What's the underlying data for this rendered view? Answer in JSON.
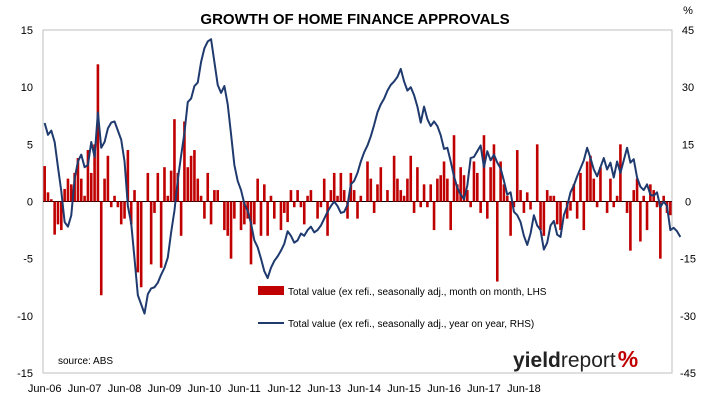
{
  "chart_data": {
    "type": "bar",
    "title": "GROWTH OF HOME FINANCE APPROVALS",
    "right_axis_unit": "%",
    "source": "source: ABS",
    "logo": {
      "part1": "yield",
      "part2": "report",
      "part3": "%"
    },
    "colors": {
      "bars": "#c00000",
      "line": "#1f3a6e"
    },
    "y_left": {
      "min": -15,
      "max": 15,
      "ticks": [
        "15",
        "10",
        "5",
        "0",
        "-5",
        "-10",
        "-15"
      ]
    },
    "y_right": {
      "min": -45,
      "max": 45,
      "ticks": [
        "45",
        "30",
        "15",
        "0",
        "-15",
        "-30",
        "-45"
      ]
    },
    "x_ticks": [
      "Jun-06",
      "Jun-07",
      "Jun-08",
      "Jun-09",
      "Jun-10",
      "Jun-11",
      "Jun-12",
      "Jun-13",
      "Jun-14",
      "Jun-15",
      "Jun-16",
      "Jun-17",
      "Jun-18"
    ],
    "start_month": "Jun-06",
    "grid": false,
    "legend_position": "center-right",
    "series": [
      {
        "name": "Total value (ex refi., seasonally adj., month on month, LHS",
        "type": "bar",
        "axis": "left",
        "values": [
          3.1,
          0.8,
          0.2,
          -2.9,
          -2.0,
          -2.5,
          1.1,
          2.0,
          1.5,
          2.5,
          3.8,
          2.0,
          0.5,
          4.5,
          2.5,
          5.0,
          12.0,
          -8.2,
          2.0,
          4.0,
          -0.5,
          0.5,
          -0.5,
          -2.0,
          -1.5,
          4.5,
          -2.0,
          1.0,
          -6.2,
          -7.5,
          0.0,
          2.5,
          -5.5,
          -1.0,
          2.5,
          -5.8,
          3.0,
          0.5,
          2.7,
          7.2,
          2.5,
          -3.0,
          7.0,
          3.0,
          4.0,
          4.5,
          2.0,
          0.5,
          -1.5,
          2.5,
          -2.0,
          1.0,
          1.0,
          0.0,
          -2.5,
          -3.0,
          -5.0,
          -1.5,
          0.0,
          -2.5,
          -2.0,
          -1.5,
          -5.5,
          -2.0,
          2.0,
          -3.0,
          1.5,
          -3.0,
          0.5,
          -1.5,
          0.0,
          -2.5,
          -1.0,
          -1.8,
          1.0,
          -0.5,
          1.0,
          -0.5,
          -2.0,
          0.5,
          1.0,
          0.0,
          -1.5,
          -0.5,
          2.0,
          -3.0,
          1.0,
          2.5,
          0.5,
          2.5,
          1.0,
          -1.5,
          2.5,
          1.0,
          -1.5,
          0.5,
          0.0,
          3.5,
          2.0,
          -1.0,
          1.5,
          3.0,
          0.0,
          1.0,
          0.0,
          4.0,
          2.0,
          1.0,
          0.5,
          2.0,
          4.0,
          -1.0,
          3.0,
          -0.5,
          1.5,
          -0.5,
          1.5,
          -2.5,
          2.0,
          2.3,
          3.5,
          2.0,
          -2.5,
          5.8,
          1.5,
          3.0,
          2.3,
          1.0,
          -0.5,
          3.5,
          2.5,
          -1.0,
          5.8,
          -1.5,
          3.0,
          5.0,
          -7.0,
          3.5,
          1.5,
          0.5,
          -3.0,
          -0.5,
          4.5,
          1.0,
          -1.0,
          0.8,
          -0.7,
          0.0,
          5.0,
          -2.5,
          -3.0,
          1.0,
          0.5,
          0.5,
          -2.0,
          -2.5,
          0.0,
          -1.5,
          -0.8,
          1.5,
          -1.5,
          2.5,
          -2.5,
          3.5,
          4.0,
          2.0,
          -0.5,
          3.0,
          0.0,
          -1.0,
          2.0,
          -0.5,
          0.5,
          5.0,
          0.0,
          -1.0,
          -4.3,
          1.0,
          2.0,
          -3.5,
          0.5,
          -2.5,
          1.5,
          1.0,
          -0.5,
          -5.0,
          0.5,
          -1.0,
          -1.2
        ]
      },
      {
        "name": "Total value (ex refi., seasonally adj., year on year, RHS)",
        "type": "line",
        "axis": "right",
        "values": [
          20.6,
          17.5,
          18.6,
          15.6,
          9.0,
          2.7,
          -5.4,
          -6.6,
          -3.6,
          6.0,
          10.5,
          12.3,
          9.0,
          9.6,
          15.6,
          11.7,
          23.4,
          14.1,
          15.6,
          19.2,
          20.7,
          21.0,
          18.6,
          16.2,
          10.5,
          -1.2,
          -5.7,
          -15.0,
          -24.6,
          -27.0,
          -29.4,
          -24.3,
          -22.8,
          -22.5,
          -21.3,
          -19.2,
          -17.4,
          -14.7,
          -8.1,
          -2.4,
          5.7,
          12.0,
          18.0,
          26.1,
          27.0,
          30.3,
          31.2,
          36.6,
          40.2,
          42.0,
          42.6,
          36.6,
          30.6,
          28.5,
          30.3,
          25.5,
          17.7,
          9.6,
          5.4,
          3.0,
          -0.6,
          -2.4,
          -5.7,
          -10.2,
          -12.0,
          -15.0,
          -18.3,
          -20.1,
          -17.4,
          -15.6,
          -14.4,
          -12.9,
          -11.1,
          -7.8,
          -9.0,
          -10.8,
          -10.2,
          -8.4,
          -9.0,
          -7.5,
          -6.6,
          -8.1,
          -7.5,
          -6.3,
          -4.5,
          -2.7,
          -1.2,
          0.0,
          -1.2,
          -3.0,
          -2.7,
          -0.9,
          4.5,
          5.4,
          7.5,
          10.5,
          12.9,
          14.7,
          17.1,
          20.1,
          23.4,
          25.5,
          27.0,
          29.1,
          30.6,
          31.5,
          32.7,
          34.8,
          31.5,
          29.1,
          30.0,
          27.9,
          24.9,
          20.7,
          24.9,
          21.6,
          19.8,
          21.0,
          19.8,
          17.4,
          13.8,
          14.1,
          10.5,
          6.6,
          3.6,
          1.8,
          0.6,
          4.2,
          11.4,
          11.7,
          13.2,
          14.7,
          9.0,
          13.2,
          10.8,
          12.3,
          10.2,
          8.7,
          5.4,
          1.8,
          2.4,
          -2.7,
          -3.6,
          -5.4,
          -9.0,
          -11.4,
          -8.4,
          -3.6,
          -6.3,
          -7.5,
          -12.6,
          -10.8,
          -6.3,
          -5.1,
          -8.7,
          -9.3,
          -3.6,
          -1.2,
          2.4,
          4.2,
          6.6,
          8.7,
          10.8,
          14.1,
          11.4,
          8.4,
          6.6,
          9.0,
          11.4,
          8.4,
          10.2,
          6.3,
          10.5,
          7.5,
          10.8,
          14.1,
          10.2,
          11.1,
          6.3,
          3.9,
          3.0,
          4.5,
          1.8,
          1.5,
          2.4,
          -1.5,
          0.0,
          -1.2,
          -7.5,
          -6.9,
          -7.8,
          -9.3
        ]
      }
    ]
  }
}
